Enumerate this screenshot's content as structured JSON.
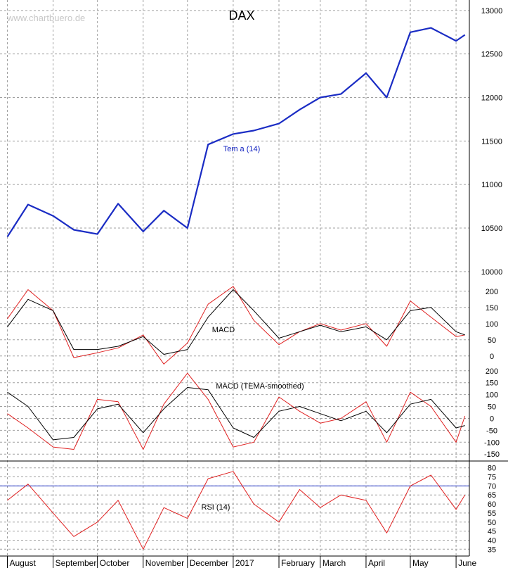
{
  "watermark": "www.chartbuero.de",
  "chart_data": [
    {
      "type": "line",
      "title": "DAX",
      "series": [
        {
          "name": "Tem a (14)",
          "x": [
            "2016-08-01",
            "2016-08-15",
            "2016-09-01",
            "2016-09-15",
            "2016-10-01",
            "2016-10-15",
            "2016-11-01",
            "2016-11-15",
            "2016-12-01",
            "2016-12-15",
            "2017-01-01",
            "2017-01-15",
            "2017-02-01",
            "2017-02-15",
            "2017-03-01",
            "2017-03-15",
            "2017-04-01",
            "2017-04-15",
            "2017-05-01",
            "2017-05-15",
            "2017-06-01",
            "2017-06-07"
          ],
          "values": [
            10400,
            10770,
            10640,
            10480,
            10430,
            10780,
            10460,
            10700,
            10500,
            11460,
            11580,
            11620,
            11700,
            11860,
            12000,
            12040,
            12280,
            12000,
            12750,
            12800,
            12650,
            12720
          ]
        }
      ],
      "yticks": [
        10000,
        10500,
        11000,
        11500,
        12000,
        12500,
        13000
      ],
      "ylim": [
        9950,
        13120
      ]
    },
    {
      "type": "line",
      "title": "MACD",
      "series": [
        {
          "x": [
            "2016-08-01",
            "2016-08-15",
            "2016-09-01",
            "2016-09-15",
            "2016-10-01",
            "2016-10-15",
            "2016-11-01",
            "2016-11-15",
            "2016-12-01",
            "2016-12-15",
            "2017-01-01",
            "2017-01-15",
            "2017-02-01",
            "2017-02-15",
            "2017-03-01",
            "2017-03-15",
            "2017-04-01",
            "2017-04-15",
            "2017-05-01",
            "2017-05-15",
            "2017-06-01",
            "2017-06-07"
          ],
          "values": [
            115,
            205,
            140,
            -5,
            10,
            25,
            65,
            -25,
            40,
            160,
            215,
            110,
            35,
            75,
            100,
            80,
            100,
            30,
            170,
            120,
            60,
            65
          ]
        },
        {
          "x": [
            "2016-08-01",
            "2016-08-15",
            "2016-09-01",
            "2016-09-15",
            "2016-10-01",
            "2016-10-15",
            "2016-11-01",
            "2016-11-15",
            "2016-12-01",
            "2016-12-15",
            "2017-01-01",
            "2017-01-15",
            "2017-02-01",
            "2017-02-15",
            "2017-03-01",
            "2017-03-15",
            "2017-04-01",
            "2017-04-15",
            "2017-05-01",
            "2017-05-15",
            "2017-06-01",
            "2017-06-07"
          ],
          "values": [
            90,
            175,
            140,
            20,
            20,
            30,
            60,
            5,
            20,
            120,
            205,
            140,
            55,
            75,
            95,
            75,
            90,
            50,
            140,
            150,
            75,
            65
          ]
        }
      ],
      "yticks": [
        0,
        50,
        100,
        150,
        200
      ],
      "ylim": [
        -20,
        230
      ]
    },
    {
      "type": "line",
      "title": "MACD (TEMA-smoothed)",
      "series": [
        {
          "x": [
            "2016-08-01",
            "2016-08-15",
            "2016-09-01",
            "2016-09-15",
            "2016-10-01",
            "2016-10-15",
            "2016-11-01",
            "2016-11-15",
            "2016-12-01",
            "2016-12-15",
            "2017-01-01",
            "2017-01-15",
            "2017-02-01",
            "2017-02-15",
            "2017-03-01",
            "2017-03-15",
            "2017-04-01",
            "2017-04-15",
            "2017-05-01",
            "2017-05-15",
            "2017-06-01",
            "2017-06-07"
          ],
          "values": [
            20,
            -40,
            -120,
            -130,
            80,
            70,
            -130,
            60,
            190,
            80,
            -120,
            -100,
            90,
            30,
            -20,
            0,
            70,
            -100,
            110,
            50,
            -100,
            10
          ]
        },
        {
          "x": [
            "2016-08-01",
            "2016-08-15",
            "2016-09-01",
            "2016-09-15",
            "2016-10-01",
            "2016-10-15",
            "2016-11-01",
            "2016-11-15",
            "2016-12-01",
            "2016-12-15",
            "2017-01-01",
            "2017-01-15",
            "2017-02-01",
            "2017-02-15",
            "2017-03-01",
            "2017-03-15",
            "2017-04-01",
            "2017-04-15",
            "2017-05-01",
            "2017-05-15",
            "2017-06-01",
            "2017-06-07"
          ],
          "values": [
            110,
            50,
            -90,
            -80,
            40,
            60,
            -60,
            40,
            130,
            120,
            -40,
            -80,
            30,
            50,
            20,
            -10,
            30,
            -60,
            60,
            80,
            -40,
            -30
          ]
        }
      ],
      "yticks": [
        200,
        150,
        100,
        50,
        0,
        -50,
        -100,
        -150
      ],
      "ylim": [
        -170,
        220
      ]
    },
    {
      "type": "line",
      "title": "RSI (14)",
      "series": [
        {
          "x": [
            "2016-08-01",
            "2016-08-15",
            "2016-09-01",
            "2016-09-15",
            "2016-10-01",
            "2016-10-15",
            "2016-11-01",
            "2016-11-15",
            "2016-12-01",
            "2016-12-15",
            "2017-01-01",
            "2017-01-15",
            "2017-02-01",
            "2017-02-15",
            "2017-03-01",
            "2017-03-15",
            "2017-04-01",
            "2017-04-15",
            "2017-05-01",
            "2017-05-15",
            "2017-06-01",
            "2017-06-07"
          ],
          "values": [
            62,
            71,
            55,
            42,
            50,
            62,
            35,
            58,
            52,
            74,
            78,
            60,
            50,
            68,
            58,
            65,
            62,
            44,
            70,
            76,
            57,
            65
          ]
        }
      ],
      "yticks": [
        35,
        40,
        45,
        50,
        55,
        60,
        65,
        70,
        75,
        80
      ],
      "ylim": [
        32,
        83
      ]
    }
  ],
  "x_month_labels": [
    "August",
    "September",
    "October",
    "November",
    "December",
    "2017",
    "February",
    "March",
    "April",
    "May",
    "June"
  ]
}
